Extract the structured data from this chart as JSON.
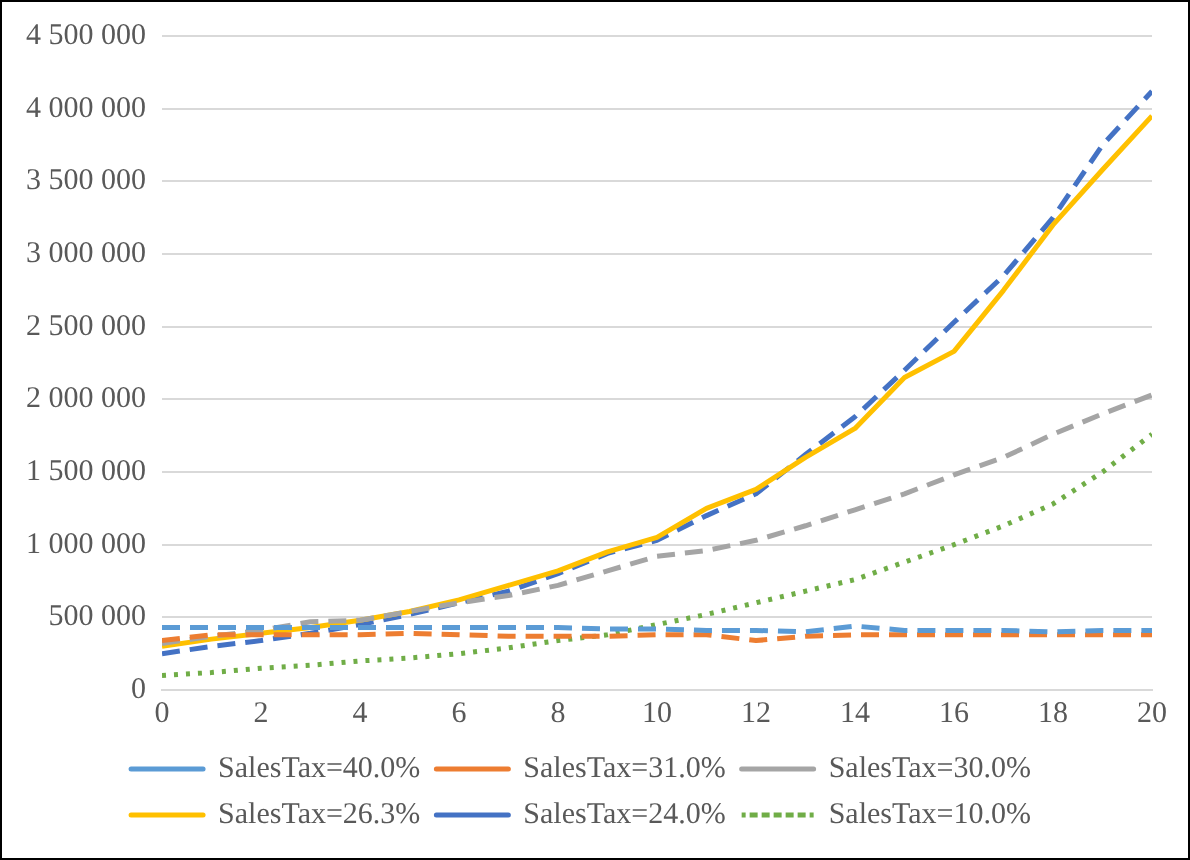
{
  "chart_data": {
    "type": "line",
    "x": [
      0,
      1,
      2,
      3,
      4,
      5,
      6,
      7,
      8,
      9,
      10,
      11,
      12,
      13,
      14,
      15,
      16,
      17,
      18,
      19,
      20
    ],
    "xlim": [
      0,
      20
    ],
    "xticks": [
      0,
      2,
      4,
      6,
      8,
      10,
      12,
      14,
      16,
      18,
      20
    ],
    "ylim": [
      0,
      4500000
    ],
    "yticks": [
      0,
      {
        "value": 500000,
        "label": "500 000"
      },
      {
        "value": 1000000,
        "label": "1 000 000"
      },
      {
        "value": 1500000,
        "label": "1 500 000"
      },
      {
        "value": 2000000,
        "label": "2 000 000"
      },
      {
        "value": 2500000,
        "label": "2 500 000"
      },
      {
        "value": 3000000,
        "label": "3 000 000"
      },
      {
        "value": 3500000,
        "label": "3 500 000"
      },
      {
        "value": 4000000,
        "label": "4 000 000"
      },
      {
        "value": 4500000,
        "label": "4 500 000"
      }
    ],
    "grid": "y",
    "legend": "bottom",
    "marker": "none",
    "series": [
      {
        "name": "SalesTax=40.0%",
        "color": "#5b9bd5",
        "line_style": "dashed",
        "values": [
          430000,
          430000,
          430000,
          430000,
          430000,
          430000,
          430000,
          430000,
          430000,
          420000,
          420000,
          410000,
          410000,
          400000,
          440000,
          410000,
          410000,
          410000,
          400000,
          410000,
          410000
        ]
      },
      {
        "name": "SalesTax=31.0%",
        "color": "#ed7d31",
        "line_style": "dashed",
        "values": [
          340000,
          380000,
          380000,
          380000,
          380000,
          390000,
          380000,
          370000,
          370000,
          370000,
          380000,
          380000,
          340000,
          370000,
          380000,
          380000,
          380000,
          380000,
          380000,
          380000,
          380000
        ]
      },
      {
        "name": "SalesTax=30.0%",
        "color": "#a5a5a5",
        "line_style": "dashed",
        "values": [
          320000,
          370000,
          410000,
          470000,
          480000,
          540000,
          600000,
          650000,
          720000,
          820000,
          920000,
          960000,
          1030000,
          1130000,
          1240000,
          1350000,
          1480000,
          1600000,
          1760000,
          1900000,
          2030000
        ]
      },
      {
        "name": "SalesTax=26.3%",
        "color": "#ffc000",
        "line_style": "solid",
        "values": [
          300000,
          350000,
          390000,
          430000,
          480000,
          540000,
          620000,
          720000,
          820000,
          950000,
          1050000,
          1250000,
          1380000,
          1600000,
          1800000,
          2150000,
          2330000,
          2750000,
          3200000,
          3580000,
          3950000
        ]
      },
      {
        "name": "SalesTax=24.0%",
        "color": "#4472c4",
        "line_style": "dashed",
        "values": [
          250000,
          300000,
          340000,
          390000,
          450000,
          520000,
          600000,
          680000,
          800000,
          940000,
          1030000,
          1200000,
          1350000,
          1620000,
          1880000,
          2200000,
          2530000,
          2850000,
          3250000,
          3750000,
          4120000
        ]
      },
      {
        "name": "SalesTax=10.0%",
        "color": "#70ad47",
        "line_style": "dotted",
        "values": [
          100000,
          120000,
          150000,
          170000,
          200000,
          220000,
          250000,
          290000,
          340000,
          380000,
          450000,
          520000,
          600000,
          680000,
          760000,
          880000,
          1000000,
          1130000,
          1280000,
          1500000,
          1760000
        ]
      }
    ]
  }
}
